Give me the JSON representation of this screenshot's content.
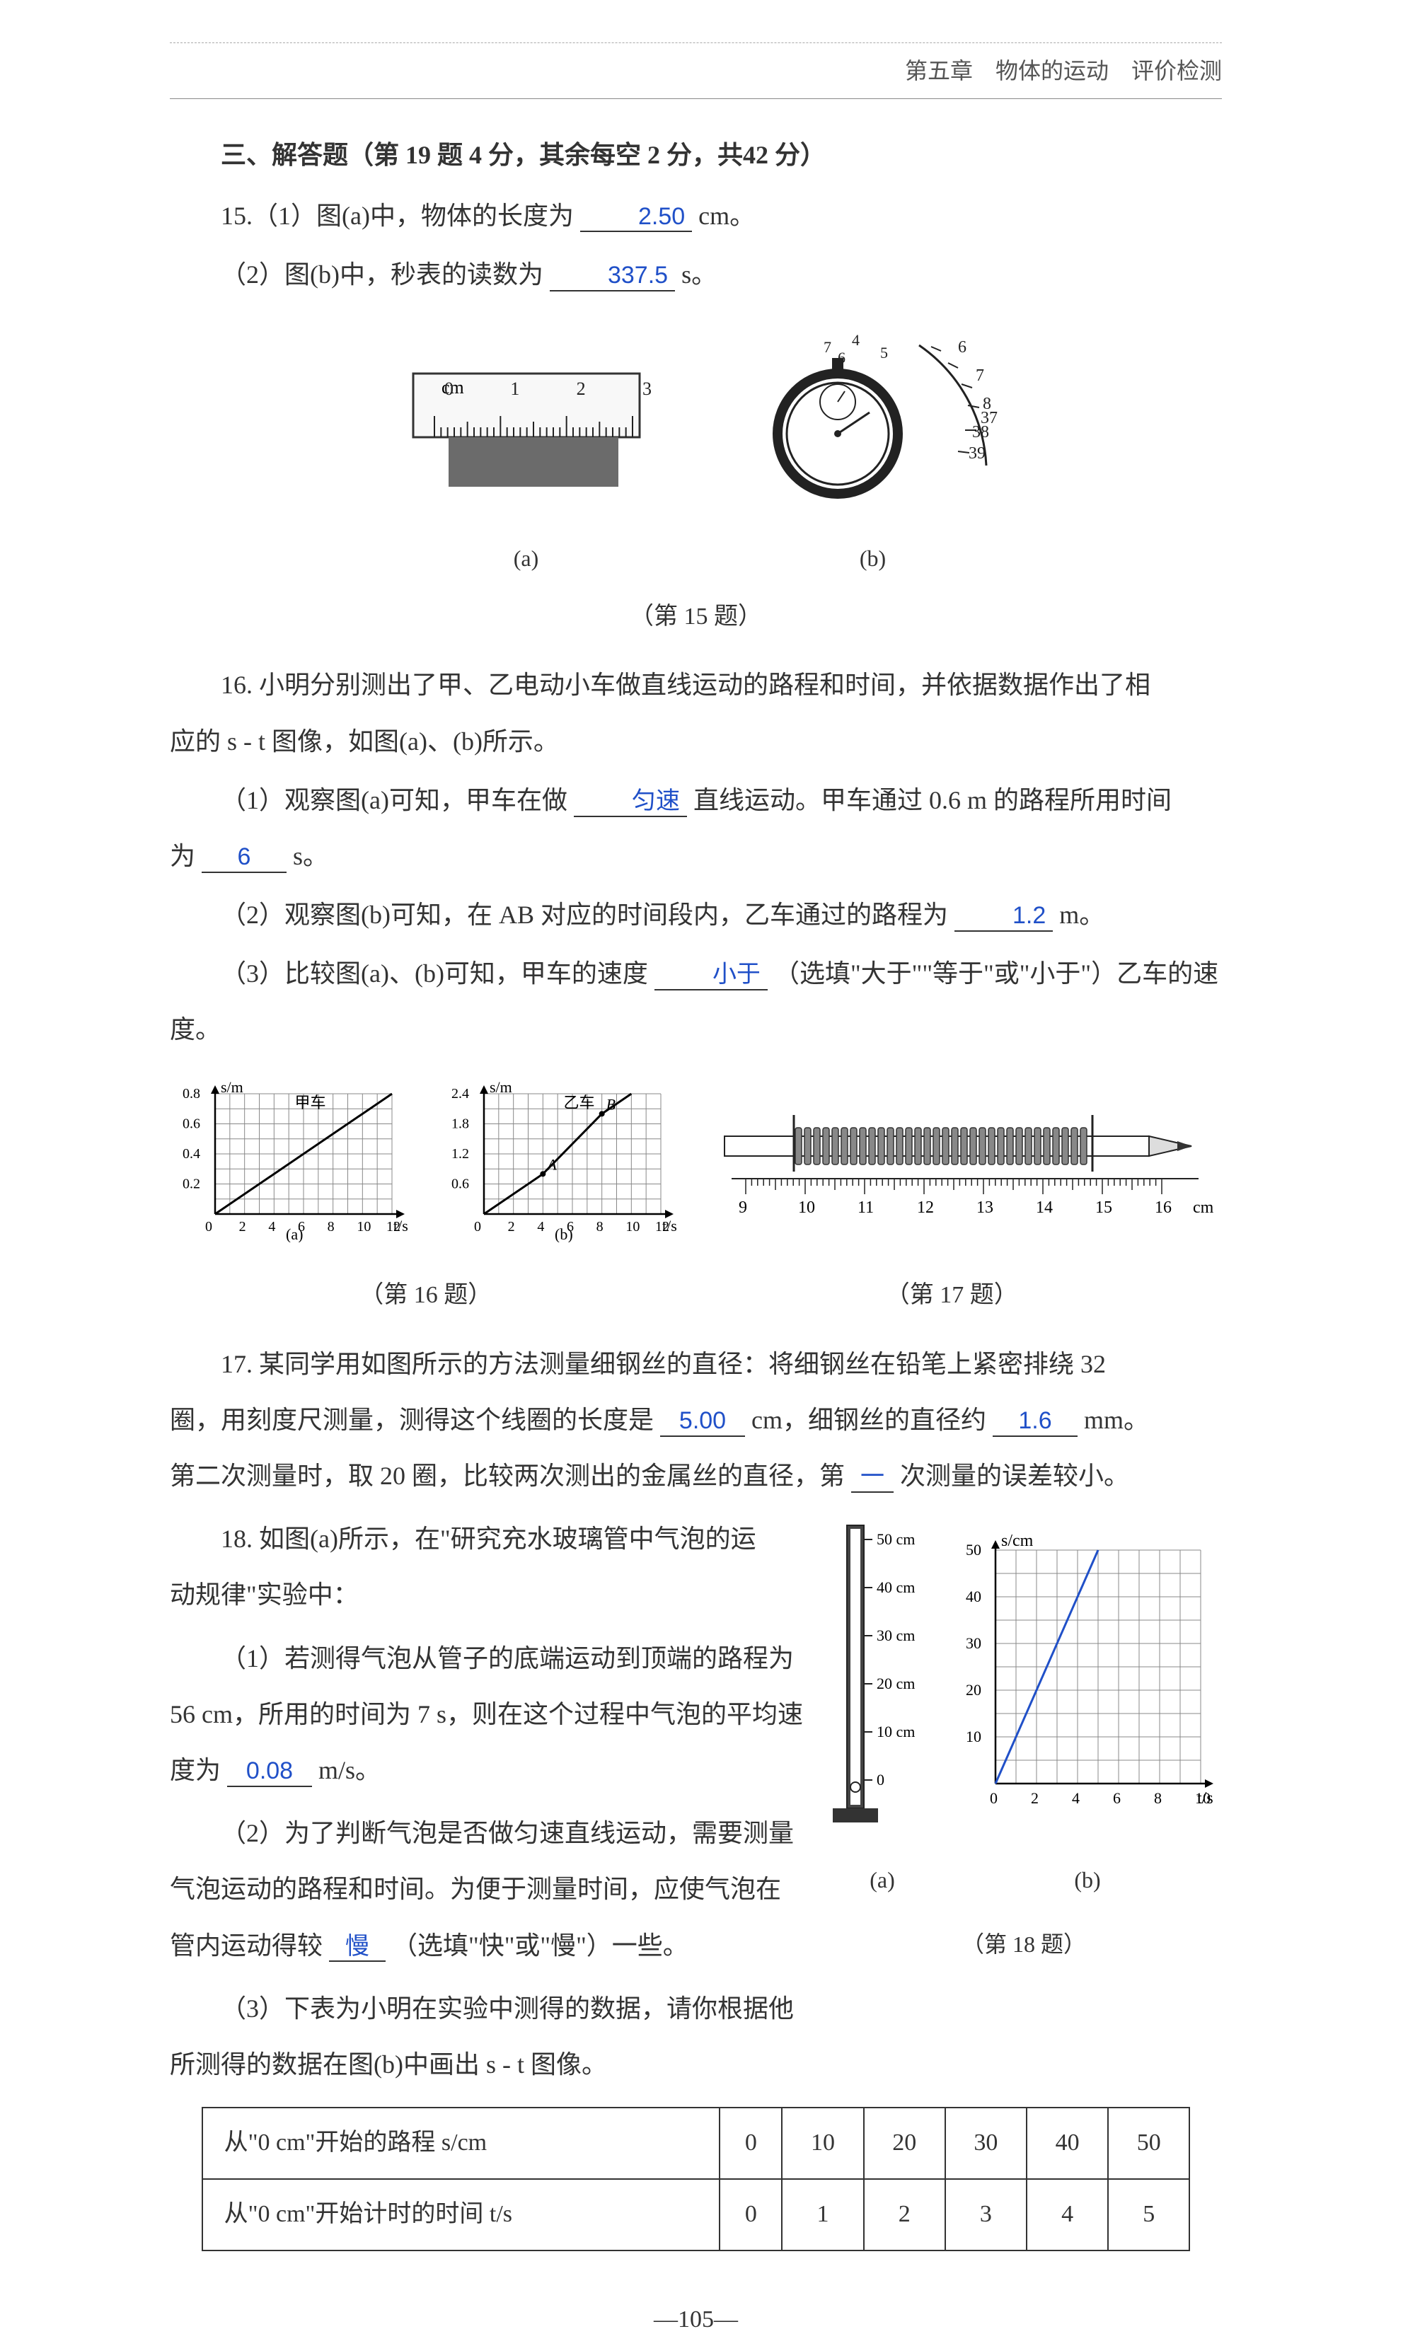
{
  "header": "第五章　物体的运动　评价检测",
  "section3_title": "三、解答题（第 19 题 4 分，其余每空 2 分，共42 分）",
  "q15": {
    "line1_pre": "15.（1）图(a)中，物体的长度为",
    "line1_ans": "2.50",
    "line1_post": "cm。",
    "line2_pre": "（2）图(b)中，秒表的读数为",
    "line2_ans": "337.5",
    "line2_post": "s。",
    "caption": "（第 15 题）",
    "fig_a_label": "(a)",
    "fig_b_label": "(b)",
    "ruler": {
      "unit": "cm",
      "ticks": [
        0,
        1,
        2,
        3
      ],
      "body_color": "#c0c0c0",
      "block_color": "#6b6b6b"
    },
    "stopwatch": {
      "outer_ticks": [
        "4",
        "5",
        "6",
        "7",
        "6",
        "7",
        "8",
        "37",
        "38",
        "39"
      ]
    }
  },
  "q16": {
    "intro_1": "16. 小明分别测出了甲、乙电动小车做直线运动的路程和时间，并依据数据作出了相",
    "intro_2": "应的 s - t 图像，如图(a)、(b)所示。",
    "p1_pre": "（1）观察图(a)可知，甲车在做",
    "p1_ans": "匀速",
    "p1_mid": "直线运动。甲车通过 0.6 m 的路程所用时间",
    "p1_cont": "为",
    "p1_ans2": "6",
    "p1_post": "s。",
    "p2_pre": "（2）观察图(b)可知，在 AB 对应的时间段内，乙车通过的路程为",
    "p2_ans": "1.2",
    "p2_post": "m。",
    "p3_pre": "（3）比较图(a)、(b)可知，甲车的速度",
    "p3_ans": "小于",
    "p3_post": "（选填\"大于\"\"等于\"或\"小于\"）乙车的速度。",
    "caption16": "（第 16 题）",
    "caption17": "（第 17 题）",
    "chart_a": {
      "ylabel": "s/m",
      "xlabel": "t/s",
      "label": "甲车",
      "fig_label": "(a)",
      "x_ticks": [
        0,
        2,
        4,
        6,
        8,
        10,
        12
      ],
      "y_ticks": [
        0,
        0.2,
        0.4,
        0.6,
        0.8
      ],
      "line": [
        [
          0,
          0
        ],
        [
          12,
          1.2
        ]
      ],
      "ymax_draw": 0.9,
      "grid_color": "#888",
      "line_color": "#000"
    },
    "chart_b": {
      "ylabel": "s/m",
      "xlabel": "t/s",
      "label": "乙车",
      "fig_label": "(b)",
      "x_ticks": [
        0,
        2,
        4,
        6,
        8,
        10,
        12
      ],
      "y_ticks": [
        0,
        0.6,
        1.2,
        1.8,
        2.4
      ],
      "pts": {
        "A": [
          4,
          0.8
        ],
        "B": [
          8,
          2.0
        ]
      },
      "line": [
        [
          0,
          0
        ],
        [
          4,
          0.8
        ],
        [
          8,
          2.0
        ],
        [
          10,
          2.4
        ]
      ],
      "grid_color": "#888",
      "line_color": "#000"
    },
    "pencil": {
      "ticks": [
        9,
        10,
        11,
        12,
        13,
        14,
        15,
        16
      ],
      "unit": "cm"
    }
  },
  "q17": {
    "intro_1": "17. 某同学用如图所示的方法测量细钢丝的直径：将细钢丝在铅笔上紧密排绕 32",
    "l2_pre": "圈，用刻度尺测量，测得这个线圈的长度是",
    "l2_ans1": "5.00",
    "l2_mid": "cm，细钢丝的直径约",
    "l2_ans2": "1.6",
    "l2_post": "mm。",
    "l3_pre": "第二次测量时，取 20 圈，比较两次测出的金属丝的直径，第",
    "l3_ans": "一",
    "l3_post": "次测量的误差较小。"
  },
  "q18": {
    "intro_1": "18. 如图(a)所示，在\"研究充水玻璃管中气泡的运",
    "intro_2": "动规律\"实验中：",
    "p1_1": "（1）若测得气泡从管子的底端运动到顶端的路程为",
    "p1_2_pre": "56 cm，所用的时间为 7 s，则在这个过程中气泡的平均速",
    "p1_3_pre": "度为",
    "p1_ans": "0.08",
    "p1_post": "m/s。",
    "p2_1": "（2）为了判断气泡是否做匀速直线运动，需要测量",
    "p2_2": "气泡运动的路程和时间。为便于测量时间，应使气泡在",
    "p2_3_pre": "管内运动得较",
    "p2_ans": "慢",
    "p2_post": "（选填\"快\"或\"慢\"）一些。",
    "p3_1": "（3）下表为小明在实验中测得的数据，请你根据他",
    "p3_2": "所测得的数据在图(b)中画出 s - t 图像。",
    "caption": "（第 18 题）",
    "fig_a_label": "(a)",
    "fig_b_label": "(b)",
    "tube": {
      "marks": [
        "50 cm",
        "40 cm",
        "30 cm",
        "20 cm",
        "10 cm",
        "0"
      ]
    },
    "chart": {
      "ylabel": "s/cm",
      "xlabel": "t/s",
      "x_ticks": [
        0,
        2,
        4,
        6,
        8,
        10
      ],
      "y_ticks": [
        0,
        10,
        20,
        30,
        40,
        50
      ],
      "line": [
        [
          0,
          0
        ],
        [
          5,
          50
        ]
      ],
      "grid_color": "#888",
      "line_color": "#2050c8"
    },
    "table": {
      "row1_header": "从\"0 cm\"开始的路程 s/cm",
      "row1": [
        0,
        10,
        20,
        30,
        40,
        50
      ],
      "row2_header": "从\"0 cm\"开始计时的时间 t/s",
      "row2": [
        0,
        1,
        2,
        3,
        4,
        5
      ]
    }
  },
  "page_number": "—105—"
}
